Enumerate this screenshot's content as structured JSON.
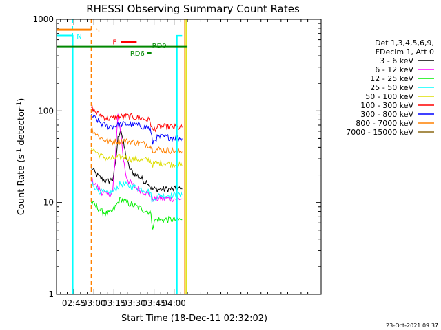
{
  "chart_data": {
    "type": "line",
    "title": "RHESSI Observing Summary Count Rates",
    "xlabel": "Start Time (18-Dec-11 02:32:02)",
    "ylabel_main": "Count Rate (s",
    "ylabel_sup": "-1",
    "ylabel_tail": " detector",
    "ylabel_sup2": "-1",
    "ylabel_close": ")",
    "x_range_min": [
      32,
      230
    ],
    "y_scale": "log",
    "ylim": [
      1,
      1000
    ],
    "x_ticks": [
      {
        "min": 45,
        "label": "02:45"
      },
      {
        "min": 60,
        "label": "03:00"
      },
      {
        "min": 75,
        "label": "03:15"
      },
      {
        "min": 90,
        "label": "03:30"
      },
      {
        "min": 105,
        "label": "03:45"
      },
      {
        "min": 120,
        "label": "04:00"
      }
    ],
    "y_ticks": [
      {
        "value": 1,
        "label": "1"
      },
      {
        "value": 10,
        "label": "10"
      },
      {
        "value": 100,
        "label": "100"
      },
      {
        "value": 1000,
        "label": "1000"
      }
    ],
    "legend_header": [
      "Det 1,3,4,5,6,9,",
      "FDecim 1, Att 0"
    ],
    "legend_position": "right",
    "series": [
      {
        "name": "3 - 6 keV",
        "color": "#000000",
        "points": [
          [
            58,
            24
          ],
          [
            62,
            20
          ],
          [
            66,
            18
          ],
          [
            70,
            17
          ],
          [
            74,
            18
          ],
          [
            76,
            25
          ],
          [
            78,
            50
          ],
          [
            80,
            65
          ],
          [
            82,
            45
          ],
          [
            84,
            32
          ],
          [
            86,
            25
          ],
          [
            88,
            22
          ],
          [
            90,
            21
          ],
          [
            92,
            20
          ],
          [
            94,
            19
          ],
          [
            96,
            18
          ],
          [
            98,
            17
          ],
          [
            100,
            17
          ],
          [
            102,
            15
          ],
          [
            104,
            14
          ],
          [
            106,
            14
          ],
          [
            110,
            14
          ],
          [
            114,
            14
          ],
          [
            118,
            14
          ],
          [
            122,
            14
          ],
          [
            126,
            14
          ]
        ]
      },
      {
        "name": "6 - 12 keV",
        "color": "#ff00ff",
        "points": [
          [
            58,
            18
          ],
          [
            62,
            15
          ],
          [
            66,
            13
          ],
          [
            70,
            12
          ],
          [
            74,
            13
          ],
          [
            76,
            30
          ],
          [
            78,
            90
          ],
          [
            80,
            60
          ],
          [
            82,
            30
          ],
          [
            84,
            20
          ],
          [
            86,
            17
          ],
          [
            88,
            16
          ],
          [
            90,
            15
          ],
          [
            94,
            14
          ],
          [
            98,
            13
          ],
          [
            102,
            12
          ],
          [
            104,
            11
          ],
          [
            106,
            11
          ],
          [
            110,
            11
          ],
          [
            114,
            11
          ],
          [
            118,
            11
          ],
          [
            122,
            11
          ],
          [
            126,
            11
          ]
        ]
      },
      {
        "name": "12 - 25 keV",
        "color": "#00ee00",
        "points": [
          [
            58,
            10
          ],
          [
            62,
            9
          ],
          [
            66,
            8
          ],
          [
            70,
            7.5
          ],
          [
            74,
            8
          ],
          [
            78,
            10
          ],
          [
            80,
            11
          ],
          [
            84,
            10
          ],
          [
            88,
            9.5
          ],
          [
            92,
            9
          ],
          [
            96,
            8.5
          ],
          [
            100,
            8
          ],
          [
            102,
            8
          ],
          [
            104,
            5.5
          ],
          [
            106,
            6.5
          ],
          [
            110,
            6.5
          ],
          [
            114,
            6.5
          ],
          [
            118,
            6.5
          ],
          [
            122,
            6.5
          ],
          [
            126,
            6.5
          ]
        ]
      },
      {
        "name": "25 - 50 keV",
        "color": "#00ffff",
        "points": [
          [
            58,
            17
          ],
          [
            62,
            14
          ],
          [
            66,
            13
          ],
          [
            70,
            12.5
          ],
          [
            74,
            13
          ],
          [
            78,
            15
          ],
          [
            80,
            16
          ],
          [
            84,
            15.5
          ],
          [
            88,
            15
          ],
          [
            92,
            14.5
          ],
          [
            96,
            14
          ],
          [
            100,
            13.5
          ],
          [
            102,
            13
          ],
          [
            104,
            10
          ],
          [
            106,
            11.5
          ],
          [
            110,
            12
          ],
          [
            114,
            12
          ],
          [
            118,
            12
          ],
          [
            122,
            12
          ],
          [
            126,
            12
          ]
        ]
      },
      {
        "name": "50 - 100 keV",
        "color": "#dddd00",
        "points": [
          [
            58,
            40
          ],
          [
            62,
            35
          ],
          [
            66,
            32
          ],
          [
            70,
            30
          ],
          [
            74,
            30
          ],
          [
            78,
            31
          ],
          [
            80,
            31
          ],
          [
            84,
            31
          ],
          [
            88,
            30
          ],
          [
            92,
            30
          ],
          [
            96,
            29
          ],
          [
            100,
            29
          ],
          [
            102,
            29
          ],
          [
            104,
            26
          ],
          [
            106,
            27
          ],
          [
            110,
            27
          ],
          [
            114,
            27
          ],
          [
            118,
            26
          ],
          [
            122,
            26
          ],
          [
            126,
            25
          ]
        ]
      },
      {
        "name": "100 - 300 keV",
        "color": "#ff0000",
        "points": [
          [
            58,
            110
          ],
          [
            62,
            95
          ],
          [
            66,
            88
          ],
          [
            70,
            83
          ],
          [
            74,
            83
          ],
          [
            78,
            85
          ],
          [
            80,
            86
          ],
          [
            84,
            87
          ],
          [
            88,
            86
          ],
          [
            92,
            85
          ],
          [
            96,
            83
          ],
          [
            100,
            80
          ],
          [
            102,
            78
          ],
          [
            104,
            60
          ],
          [
            106,
            65
          ],
          [
            110,
            67
          ],
          [
            114,
            67
          ],
          [
            118,
            67
          ],
          [
            122,
            66
          ],
          [
            126,
            66
          ]
        ]
      },
      {
        "name": "300 - 800 keV",
        "color": "#0000ff",
        "points": [
          [
            58,
            90
          ],
          [
            62,
            80
          ],
          [
            66,
            72
          ],
          [
            70,
            68
          ],
          [
            74,
            68
          ],
          [
            78,
            70
          ],
          [
            80,
            71
          ],
          [
            84,
            72
          ],
          [
            88,
            71
          ],
          [
            92,
            70
          ],
          [
            96,
            68
          ],
          [
            100,
            66
          ],
          [
            102,
            64
          ],
          [
            104,
            45
          ],
          [
            106,
            50
          ],
          [
            110,
            52
          ],
          [
            114,
            52
          ],
          [
            118,
            51
          ],
          [
            122,
            51
          ],
          [
            126,
            50
          ]
        ]
      },
      {
        "name": "800 - 7000 keV",
        "color": "#ff8000",
        "points": [
          [
            58,
            65
          ],
          [
            62,
            55
          ],
          [
            66,
            50
          ],
          [
            70,
            47
          ],
          [
            74,
            46
          ],
          [
            78,
            47
          ],
          [
            80,
            47
          ],
          [
            84,
            47
          ],
          [
            88,
            46
          ],
          [
            92,
            45
          ],
          [
            96,
            44
          ],
          [
            100,
            43
          ],
          [
            102,
            42
          ],
          [
            104,
            38
          ],
          [
            106,
            38
          ],
          [
            110,
            38
          ],
          [
            114,
            37
          ],
          [
            118,
            37
          ],
          [
            122,
            36
          ],
          [
            126,
            36
          ]
        ]
      },
      {
        "name": "7000 - 15000 keV",
        "color": "#8b6914",
        "points": []
      }
    ],
    "state_bars": [
      {
        "label": "S",
        "color": "#ff8000",
        "x0": 32,
        "x1": 58,
        "y": 770
      },
      {
        "label": "N",
        "color": "#00ffff",
        "x0": 32,
        "x1": 44,
        "y": 660
      },
      {
        "label": "F",
        "color": "#ff0000",
        "x0": 80,
        "x1": 92,
        "y": 570
      },
      {
        "label": "RD0",
        "color": "#008800",
        "x0": 32,
        "x1": 130,
        "y": 500
      },
      {
        "label": "RD6",
        "color": "#008800",
        "x0": 100,
        "x1": 103,
        "y": 430
      }
    ],
    "vertical_lines": [
      {
        "min": 44,
        "color": "#00ffff",
        "style": "dashed"
      },
      {
        "min": 58,
        "color": "#ff8000",
        "style": "dashed"
      },
      {
        "min": 128,
        "color": "#ff8000",
        "style": "solid"
      },
      {
        "min": 129,
        "color": "#dddd00",
        "style": "solid"
      }
    ],
    "night_segments": [
      {
        "color": "#00ffff",
        "points": [
          [
            32,
            660
          ],
          [
            44,
            660
          ],
          [
            44,
            1
          ]
        ]
      },
      {
        "color": "#00ffff",
        "points": [
          [
            122,
            1
          ],
          [
            122,
            660
          ],
          [
            126,
            660
          ]
        ]
      }
    ]
  },
  "footer_date": "23-Oct-2021 09:37"
}
